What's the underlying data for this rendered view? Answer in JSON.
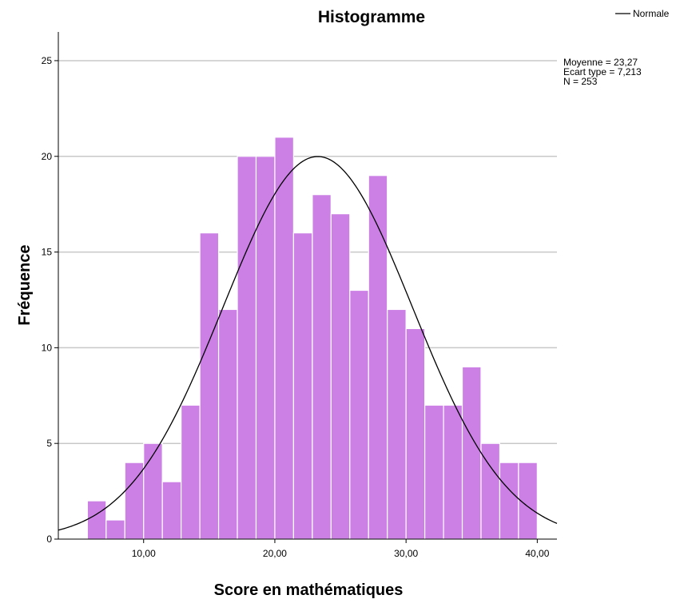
{
  "chart_data": {
    "type": "bar",
    "title": "Histogramme",
    "xlabel": "Score en mathématiques",
    "ylabel": "Fréquence",
    "xlim": [
      3.5,
      41.5
    ],
    "ylim": [
      0,
      26.5
    ],
    "x_ticks": [
      10,
      20,
      30,
      40
    ],
    "x_tick_labels": [
      "10,00",
      "20,00",
      "30,00",
      "40,00"
    ],
    "y_ticks": [
      0,
      5,
      10,
      15,
      20,
      25
    ],
    "y_tick_labels": [
      "0",
      "5",
      "10",
      "15",
      "20",
      "25"
    ],
    "grid": "horizontal",
    "bin_width": 1.4286,
    "bins": [
      {
        "start": 5.7143,
        "value": 2
      },
      {
        "start": 7.1429,
        "value": 1
      },
      {
        "start": 8.5714,
        "value": 4
      },
      {
        "start": 10.0,
        "value": 5
      },
      {
        "start": 11.4286,
        "value": 3
      },
      {
        "start": 12.8571,
        "value": 7
      },
      {
        "start": 14.2857,
        "value": 16
      },
      {
        "start": 15.7143,
        "value": 12
      },
      {
        "start": 17.1429,
        "value": 20
      },
      {
        "start": 18.5714,
        "value": 20
      },
      {
        "start": 20.0,
        "value": 21
      },
      {
        "start": 21.4286,
        "value": 16
      },
      {
        "start": 22.8571,
        "value": 18
      },
      {
        "start": 24.2857,
        "value": 17
      },
      {
        "start": 25.7143,
        "value": 13
      },
      {
        "start": 27.1429,
        "value": 19
      },
      {
        "start": 28.5714,
        "value": 12
      },
      {
        "start": 30.0,
        "value": 11
      },
      {
        "start": 31.4286,
        "value": 7
      },
      {
        "start": 32.8571,
        "value": 7
      },
      {
        "start": 34.2857,
        "value": 9
      },
      {
        "start": 35.7143,
        "value": 5
      },
      {
        "start": 37.1429,
        "value": 4
      },
      {
        "start": 38.5714,
        "value": 4
      }
    ],
    "normal_curve": {
      "name": "Normale",
      "mean": 23.27,
      "sd": 7.213,
      "n": 253
    },
    "legend": {
      "entries": [
        "Normale"
      ],
      "position": "top-right"
    },
    "stats_lines": [
      "Moyenne = 23,27",
      "Ecart type = 7,213",
      "N = 253"
    ],
    "colors": {
      "bar_fill": "#cc80e6",
      "bar_stroke": "#ffffff",
      "curve": "#000000",
      "grid": "#c8c8c8",
      "axis": "#000000"
    }
  }
}
